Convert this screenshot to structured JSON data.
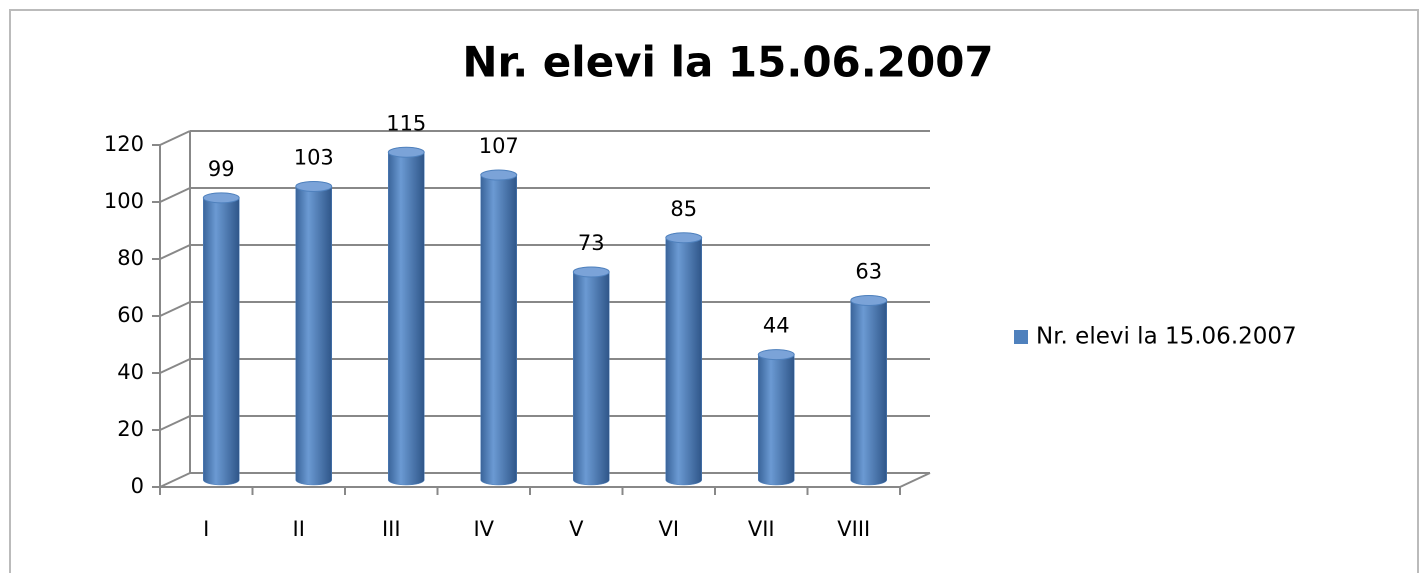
{
  "chart_data": {
    "type": "bar3d",
    "title": "Nr. elevi la 15.06.2007",
    "categories": [
      "I",
      "II",
      "III",
      "IV",
      "V",
      "VI",
      "VII",
      "VIII"
    ],
    "series": [
      {
        "name": "Nr. elevi la 15.06.2007",
        "color": "#4f81bd",
        "values": [
          99,
          103,
          115,
          107,
          73,
          85,
          44,
          63
        ]
      }
    ],
    "ylim": [
      0,
      120
    ],
    "yticks": [
      0,
      20,
      40,
      60,
      80,
      100,
      120
    ],
    "grid": true,
    "legend": "right",
    "data_labels": true
  }
}
